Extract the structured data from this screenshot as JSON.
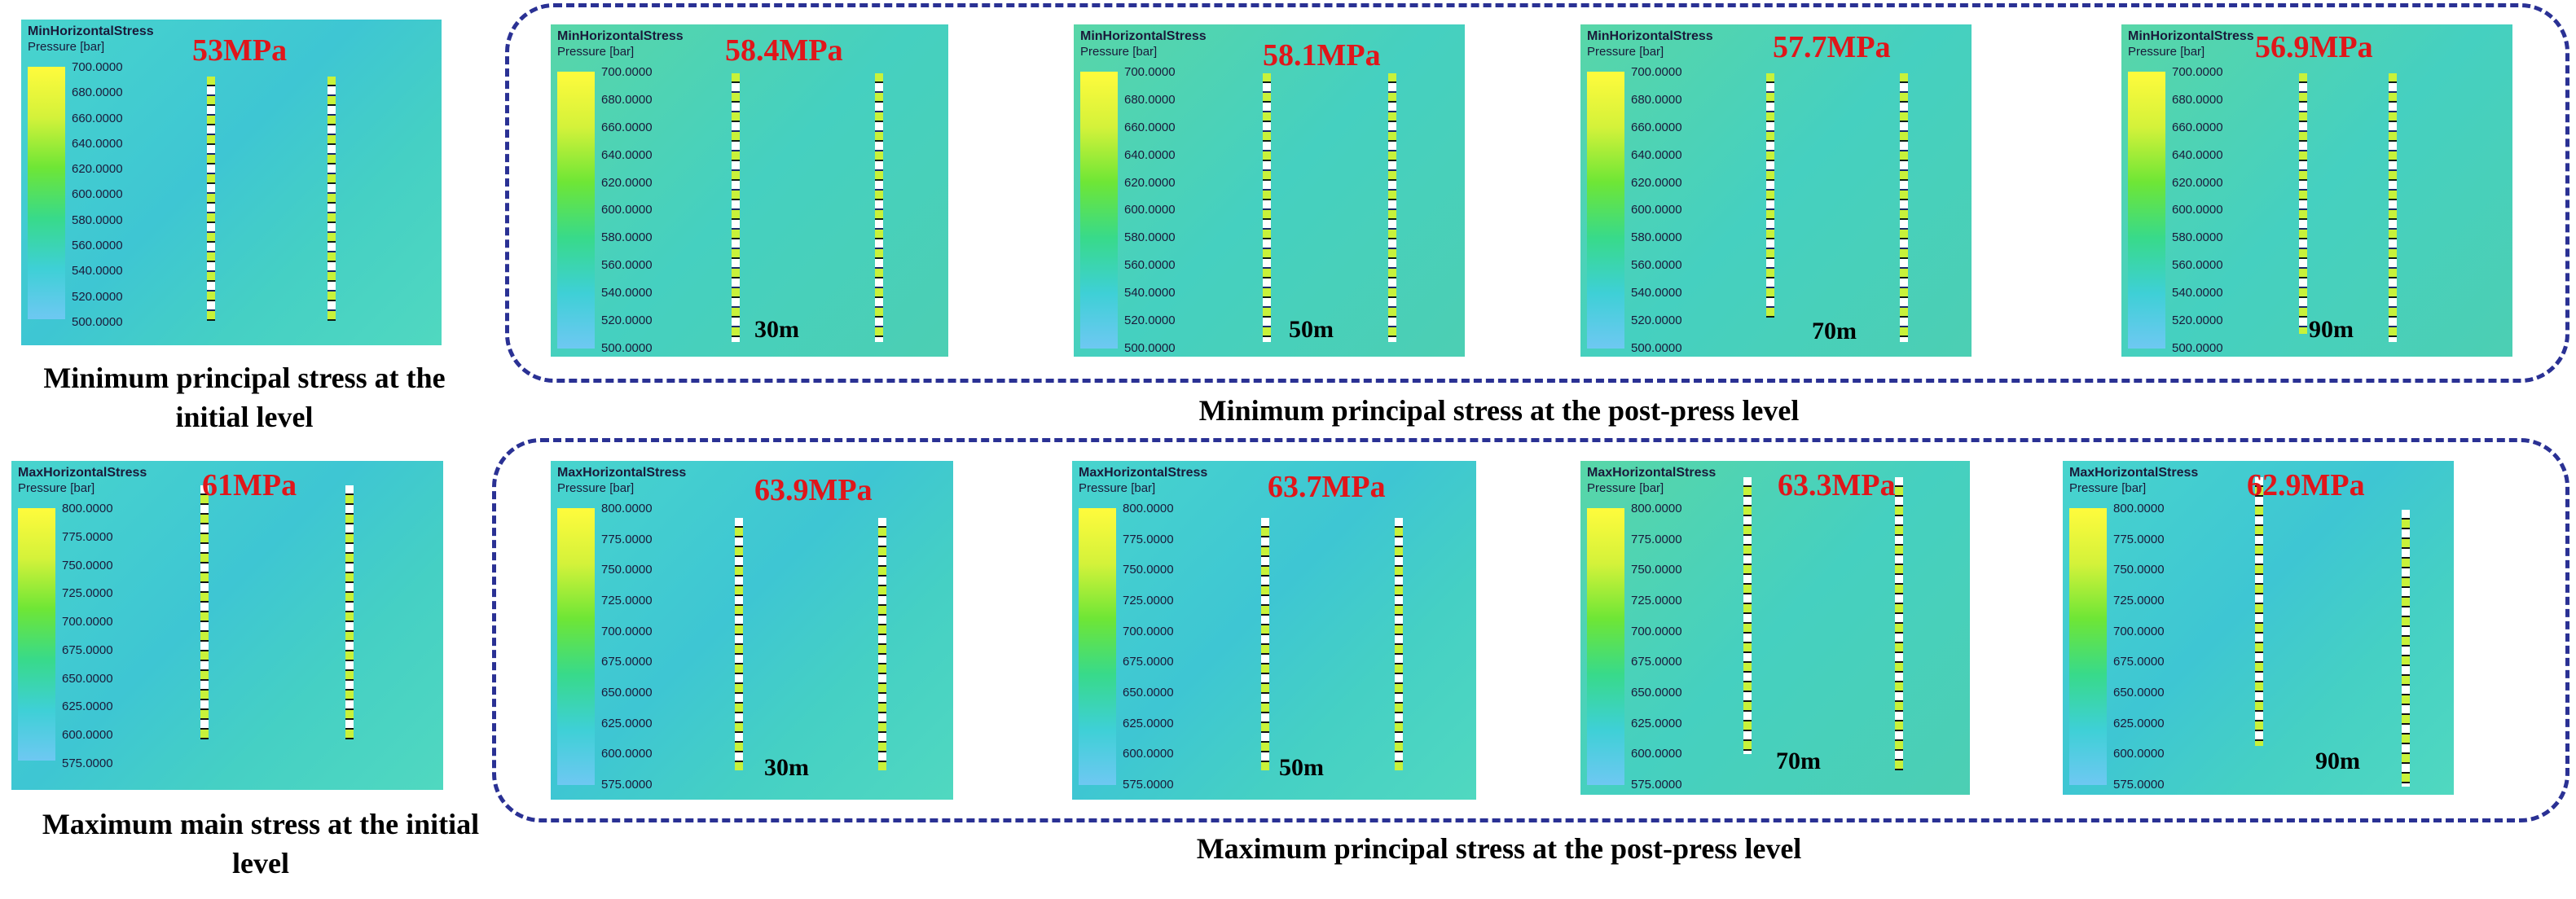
{
  "initial": {
    "min_panel": {
      "title": "MinHorizontalStress",
      "unit": "Pressure [bar]",
      "ticks": [
        "700.0000",
        "680.0000",
        "660.0000",
        "640.0000",
        "620.0000",
        "600.0000",
        "580.0000",
        "560.0000",
        "540.0000",
        "520.0000",
        "500.0000"
      ],
      "stress": "53MPa"
    },
    "max_panel": {
      "title": "MaxHorizontalStress",
      "unit": "Pressure [bar]",
      "ticks": [
        "800.0000",
        "775.0000",
        "750.0000",
        "725.0000",
        "700.0000",
        "675.0000",
        "650.0000",
        "625.0000",
        "600.0000",
        "575.0000"
      ],
      "stress": "61MPa"
    },
    "min_caption": "Minimum principal stress at the initial level",
    "max_caption": "Maximum main stress at the initial level"
  },
  "post_min": {
    "caption": "Minimum principal stress at the post-press level",
    "title": "MinHorizontalStress",
    "unit": "Pressure [bar]",
    "ticks": [
      "700.0000",
      "680.0000",
      "660.0000",
      "640.0000",
      "620.0000",
      "600.0000",
      "580.0000",
      "560.0000",
      "540.0000",
      "520.0000",
      "500.0000"
    ],
    "panels": [
      {
        "stress": "58.4MPa",
        "distance": "30m"
      },
      {
        "stress": "58.1MPa",
        "distance": "50m"
      },
      {
        "stress": "57.7MPa",
        "distance": "70m"
      },
      {
        "stress": "56.9MPa",
        "distance": "90m"
      }
    ]
  },
  "post_max": {
    "caption": "Maximum principal stress at the post-press level",
    "title": "MaxHorizontalStress",
    "unit": "Pressure [bar]",
    "ticks": [
      "800.0000",
      "775.0000",
      "750.0000",
      "725.0000",
      "700.0000",
      "675.0000",
      "650.0000",
      "625.0000",
      "600.0000",
      "575.0000"
    ],
    "panels": [
      {
        "stress": "63.9MPa",
        "distance": "30m"
      },
      {
        "stress": "63.7MPa",
        "distance": "50m"
      },
      {
        "stress": "63.3MPa",
        "distance": "70m"
      },
      {
        "stress": "62.9MPa",
        "distance": "90m"
      }
    ]
  },
  "colors": {
    "stress_label": "#e0161a",
    "dashed_border": "#2a3194"
  }
}
